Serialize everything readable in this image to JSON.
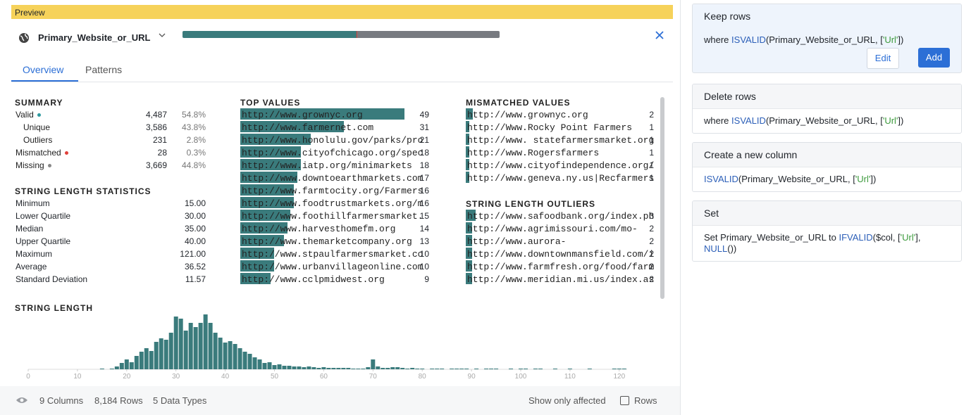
{
  "preview_label": "Preview",
  "column": {
    "name": "Primary_Website_or_URL"
  },
  "tabs": [
    "Overview",
    "Patterns"
  ],
  "summary": {
    "title": "SUMMARY",
    "rows": [
      {
        "label": "Valid",
        "count": {
          "value": 4487,
          "label": "4,487"
        },
        "percent": "54.8%",
        "dot": "#2f9aa0"
      },
      {
        "label": "Unique",
        "count": {
          "value": 3586,
          "label": "3,586"
        },
        "percent": "43.8%"
      },
      {
        "label": "Outliers",
        "count": {
          "value": 231,
          "label": "231"
        },
        "percent": "2.8%"
      },
      {
        "label": "Mismatched",
        "count": {
          "value": 28,
          "label": "28"
        },
        "percent": "0.3%",
        "dot": "#e0403a"
      },
      {
        "label": "Missing",
        "count": {
          "value": 3669,
          "label": "3,669"
        },
        "percent": "44.8%",
        "dot": "#888888"
      }
    ]
  },
  "quality_bar": {
    "segments": [
      {
        "row": 0,
        "color": "#3a7b7c"
      },
      {
        "row": 3,
        "color": "#e0403a"
      },
      {
        "row": 4,
        "color": "#777a80"
      }
    ]
  },
  "length_stats": {
    "title": "STRING LENGTH STATISTICS",
    "rows": [
      {
        "label": "Minimum",
        "value": "15.00"
      },
      {
        "label": "Lower Quartile",
        "value": "30.00"
      },
      {
        "label": "Median",
        "value": "35.00"
      },
      {
        "label": "Upper Quartile",
        "value": "40.00"
      },
      {
        "label": "Maximum",
        "value": "121.00"
      },
      {
        "label": "Average",
        "value": "36.52"
      },
      {
        "label": "Standard Deviation",
        "value": "11.57"
      }
    ]
  },
  "top_values": {
    "title": "TOP VALUES",
    "bar_color": "#3a7b7c",
    "rows": [
      {
        "value": "http://www.grownyc.org",
        "count": 49
      },
      {
        "value": "http://www.farmernet.com",
        "count": 31
      },
      {
        "value": "http://www.honolulu.gov/parks/pro",
        "count": 21
      },
      {
        "value": "http://www.cityofchicago.org/spec",
        "count": 18
      },
      {
        "value": "http://www.iatp.org/minimarkets",
        "count": 18
      },
      {
        "value": "http://www.downtoearthmarkets.com",
        "count": 17
      },
      {
        "value": "http://www.farmtocity.org/Farmers",
        "count": 16
      },
      {
        "value": "http://www.foodtrustmarkets.org/m",
        "count": 16
      },
      {
        "value": "http://www.foothillfarmersmarket.",
        "count": 15
      },
      {
        "value": "http://www.harvesthomefm.org",
        "count": 14
      },
      {
        "value": "http://www.themarketcompany.org",
        "count": 13
      },
      {
        "value": "http://www.stpaulfarmersmarket.co",
        "count": 10
      },
      {
        "value": "http://www.urbanvillageonline.com",
        "count": 10
      },
      {
        "value": "http://www.cclpmidwest.org",
        "count": 9
      }
    ]
  },
  "mismatched_values": {
    "title": "MISMATCHED VALUES",
    "rows": [
      {
        "value": "http://www.grownyc.org",
        "count": 2
      },
      {
        "value": "http://Www.Rocky Point Farmers",
        "count": 1
      },
      {
        "value": "http://www. statefarmersmarket.org",
        "count": 1
      },
      {
        "value": "http://www.Rogersfarmers",
        "count": 1
      },
      {
        "value": "http://www.cityofindependence.org/",
        "count": 1
      },
      {
        "value": "http://www.geneva.ny.us|Recfarmers",
        "count": 1
      }
    ]
  },
  "length_outliers": {
    "title": "STRING LENGTH OUTLIERS",
    "rows": [
      {
        "value": "http://www.safoodbank.org/index.ph",
        "count": 3
      },
      {
        "value": "http://www.agrimissouri.com/mo-",
        "count": 2
      },
      {
        "value": "http://www.aurora-",
        "count": 2
      },
      {
        "value": "http://www.downtownmansfield.com/i",
        "count": 2
      },
      {
        "value": "http://www.farmfresh.org/food/farm",
        "count": 2
      },
      {
        "value": "http://www.meridian.mi.us/index.as",
        "count": 2
      }
    ]
  },
  "histogram": {
    "type": "bar",
    "title": "STRING LENGTH",
    "color": "#3a7b7c",
    "x": [
      15,
      16,
      17,
      18,
      19,
      20,
      21,
      22,
      23,
      24,
      25,
      26,
      27,
      28,
      29,
      30,
      31,
      32,
      33,
      34,
      35,
      36,
      37,
      38,
      39,
      40,
      41,
      42,
      43,
      44,
      45,
      46,
      47,
      48,
      49,
      50,
      51,
      52,
      53,
      54,
      55,
      56,
      57,
      58,
      59,
      60,
      61,
      62,
      63,
      64,
      65,
      66,
      67,
      68,
      69,
      70,
      71,
      72,
      73,
      74,
      75,
      76,
      77,
      78,
      79,
      80,
      81,
      82,
      83,
      84,
      85,
      86,
      87,
      88,
      89,
      90,
      91,
      92,
      93,
      94,
      95,
      96,
      97,
      98,
      99,
      100,
      101,
      102,
      103,
      104,
      105,
      106,
      107,
      108,
      109,
      110,
      111,
      112,
      113,
      114,
      115,
      116,
      117,
      118,
      119,
      120,
      121
    ],
    "values": [
      1,
      0,
      1,
      4,
      9,
      14,
      10,
      19,
      25,
      30,
      26,
      39,
      44,
      42,
      52,
      75,
      72,
      55,
      66,
      60,
      66,
      78,
      66,
      52,
      45,
      38,
      40,
      36,
      30,
      25,
      22,
      17,
      14,
      9,
      10,
      6,
      7,
      5,
      5,
      4,
      4,
      3,
      4,
      3,
      2,
      3,
      2,
      2,
      2,
      2,
      2,
      1,
      1,
      1,
      3,
      14,
      4,
      2,
      2,
      3,
      3,
      2,
      1,
      2,
      1,
      1,
      0,
      1,
      1,
      1,
      0,
      1,
      1,
      1,
      1,
      0,
      1,
      0,
      1,
      1,
      1,
      0,
      0,
      1,
      0,
      1,
      1,
      0,
      1,
      1,
      0,
      0,
      1,
      0,
      0,
      1,
      0,
      0,
      0,
      1,
      0,
      0,
      0,
      0,
      1,
      1,
      1
    ],
    "xlim": [
      0,
      123
    ],
    "xticks": [
      0,
      10,
      20,
      30,
      40,
      50,
      60,
      70,
      80,
      90,
      100,
      110,
      120
    ]
  },
  "footer": {
    "columns": "9 Columns",
    "rows": "8,184 Rows",
    "types": "5 Data Types",
    "show_only": "Show only affected",
    "checkbox": "Rows"
  },
  "cards": [
    {
      "title": "Keep rows",
      "selected": true,
      "body": [
        {
          "text": "where ",
          "style": "plain"
        },
        {
          "text": "ISVALID",
          "style": "kw"
        },
        {
          "text": "(Primary_Website_or_URL, [",
          "style": "plain"
        },
        {
          "text": "'Url'",
          "style": "str"
        },
        {
          "text": "])",
          "style": "plain"
        }
      ],
      "buttons": [
        "Edit",
        "Add"
      ]
    },
    {
      "title": "Delete rows",
      "body": [
        {
          "text": "where ",
          "style": "plain"
        },
        {
          "text": "ISVALID",
          "style": "kw"
        },
        {
          "text": "(Primary_Website_or_URL, [",
          "style": "plain"
        },
        {
          "text": "'Url'",
          "style": "str"
        },
        {
          "text": "])",
          "style": "plain"
        }
      ]
    },
    {
      "title": "Create a new column",
      "body": [
        {
          "text": "ISVALID",
          "style": "kw"
        },
        {
          "text": "(Primary_Website_or_URL, [",
          "style": "plain"
        },
        {
          "text": "'Url'",
          "style": "str"
        },
        {
          "text": "])",
          "style": "plain"
        }
      ]
    },
    {
      "title": "Set",
      "body": [
        {
          "text": "Set ",
          "style": "plain"
        },
        {
          "text": "Primary_Website_or_URL ",
          "style": "plain"
        },
        {
          "text": "to ",
          "style": "plain"
        },
        {
          "text": "IFVALID",
          "style": "kw"
        },
        {
          "text": "($col, [",
          "style": "plain"
        },
        {
          "text": "'Url'",
          "style": "str"
        },
        {
          "text": "], ",
          "style": "plain"
        },
        {
          "text": "NULL",
          "style": "kw"
        },
        {
          "text": "())",
          "style": "plain"
        }
      ]
    }
  ]
}
